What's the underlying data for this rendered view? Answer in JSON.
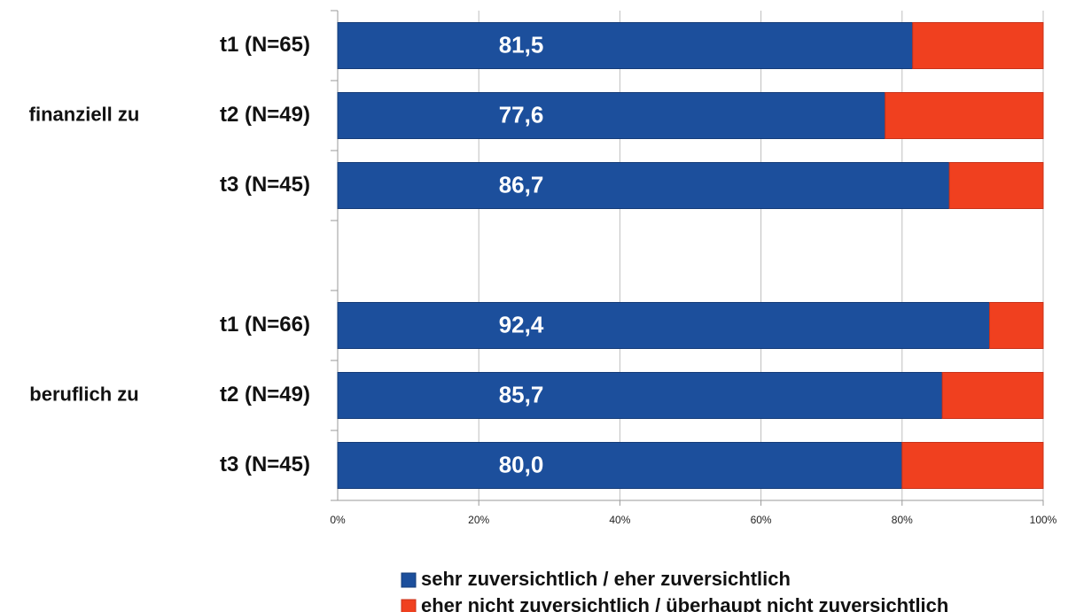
{
  "chart_data": {
    "type": "stacked-bar-horizontal",
    "categories": [
      "t1 (N=65)",
      "t2 (N=49)",
      "t3 (N=45)",
      null,
      "t1 (N=66)",
      "t2 (N=49)",
      "t3 (N=45)"
    ],
    "groups": [
      "finanziell zu",
      "beruflich zu"
    ],
    "series": [
      {
        "name": "sehr zuversichtlich / eher zuversichtlich",
        "color": "#1c4f9c",
        "values": [
          81.5,
          77.6,
          86.7,
          null,
          92.4,
          85.7,
          80.0
        ],
        "value_labels": [
          "81,5",
          "77,6",
          "86,7",
          null,
          "92,4",
          "85,7",
          "80,0"
        ]
      },
      {
        "name": "eher nicht zuversichtlich / überhaupt nicht zuversichtlich",
        "color": "#f0401f",
        "values": [
          18.5,
          22.4,
          13.3,
          null,
          7.6,
          14.3,
          20.0
        ]
      }
    ],
    "xlim": [
      0,
      100
    ],
    "xticks": [
      {
        "value": 0,
        "label": "0%"
      },
      {
        "value": 20,
        "label": "20%"
      },
      {
        "value": 40,
        "label": "40%"
      },
      {
        "value": 60,
        "label": "60%"
      },
      {
        "value": 80,
        "label": "80%"
      },
      {
        "value": 100,
        "label": "100%"
      }
    ],
    "grid": true
  }
}
